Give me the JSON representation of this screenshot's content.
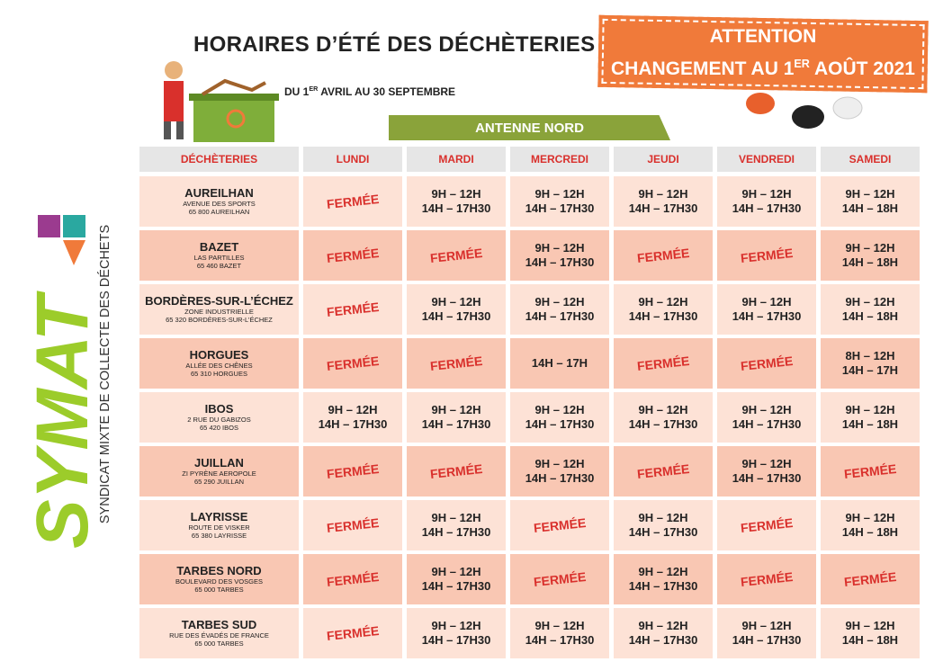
{
  "header": {
    "title": "HORAIRES D’ÉTÉ DES DÉCHÈTERIES",
    "period": [
      "DU 1",
      "ER",
      " AVRIL AU 30 SEPTEMBRE"
    ]
  },
  "notice": {
    "line1": "ATTENTION",
    "line2": [
      "CHANGEMENT AU 1",
      "ER",
      " AOÛT 2021"
    ]
  },
  "section": "ANTENNE NORD",
  "brand": {
    "name": "SYMAT",
    "tagline": "SYNDICAT MIXTE DE COLLECTE DES DÉCHETS"
  },
  "table": {
    "columns": [
      "DÉCHÈTERIES",
      "LUNDI",
      "MARDI",
      "MERCREDI",
      "JEUDI",
      "VENDREDI",
      "SAMEDI"
    ],
    "rows": [
      {
        "name": "AUREILHAN",
        "address": [
          "AVENUE DES SPORTS",
          "65 800 AUREILHAN"
        ],
        "hours": [
          [
            "FERMÉE"
          ],
          [
            "9H – 12H",
            "14H – 17H30"
          ],
          [
            "9H – 12H",
            "14H – 17H30"
          ],
          [
            "9H – 12H",
            "14H – 17H30"
          ],
          [
            "9H – 12H",
            "14H – 17H30"
          ],
          [
            "9H – 12H",
            "14H – 18H"
          ]
        ]
      },
      {
        "name": "BAZET",
        "address": [
          "LAS PARTILLES",
          "65 460 BAZET"
        ],
        "hours": [
          [
            "FERMÉE"
          ],
          [
            "FERMÉE"
          ],
          [
            "9H – 12H",
            "14H – 17H30"
          ],
          [
            "FERMÉE"
          ],
          [
            "FERMÉE"
          ],
          [
            "9H – 12H",
            "14H – 18H"
          ]
        ]
      },
      {
        "name": "BORDÈRES-SUR-L’ÉCHEZ",
        "address": [
          "ZONE INDUSTRIELLE",
          "65 320 BORDÈRES-SUR-L’ÉCHEZ"
        ],
        "hours": [
          [
            "FERMÉE"
          ],
          [
            "9H – 12H",
            "14H – 17H30"
          ],
          [
            "9H – 12H",
            "14H – 17H30"
          ],
          [
            "9H – 12H",
            "14H – 17H30"
          ],
          [
            "9H – 12H",
            "14H – 17H30"
          ],
          [
            "9H – 12H",
            "14H – 18H"
          ]
        ]
      },
      {
        "name": "HORGUES",
        "address": [
          "ALLÉE DES CHÊNES",
          "65 310 HORGUES"
        ],
        "hours": [
          [
            "FERMÉE"
          ],
          [
            "FERMÉE"
          ],
          [
            "14H – 17H"
          ],
          [
            "FERMÉE"
          ],
          [
            "FERMÉE"
          ],
          [
            "8H – 12H",
            "14H – 17H"
          ]
        ]
      },
      {
        "name": "IBOS",
        "address": [
          "2 RUE DU GABIZOS",
          "65 420 IBOS"
        ],
        "hours": [
          [
            "9H – 12H",
            "14H – 17H30"
          ],
          [
            "9H – 12H",
            "14H – 17H30"
          ],
          [
            "9H – 12H",
            "14H – 17H30"
          ],
          [
            "9H – 12H",
            "14H – 17H30"
          ],
          [
            "9H – 12H",
            "14H – 17H30"
          ],
          [
            "9H – 12H",
            "14H – 18H"
          ]
        ]
      },
      {
        "name": "JUILLAN",
        "address": [
          "ZI PYRÈNE AEROPOLE",
          "65 290 JUILLAN"
        ],
        "hours": [
          [
            "FERMÉE"
          ],
          [
            "FERMÉE"
          ],
          [
            "9H – 12H",
            "14H – 17H30"
          ],
          [
            "FERMÉE"
          ],
          [
            "9H – 12H",
            "14H – 17H30"
          ],
          [
            "FERMÉE"
          ]
        ]
      },
      {
        "name": "LAYRISSE",
        "address": [
          "ROUTE DE VISKER",
          "65 380 LAYRISSE"
        ],
        "hours": [
          [
            "FERMÉE"
          ],
          [
            "9H – 12H",
            "14H – 17H30"
          ],
          [
            "FERMÉE"
          ],
          [
            "9H – 12H",
            "14H – 17H30"
          ],
          [
            "FERMÉE"
          ],
          [
            "9H – 12H",
            "14H – 18H"
          ]
        ]
      },
      {
        "name": "TARBES NORD",
        "address": [
          "BOULEVARD DES VOSGES",
          "65 000 TARBES"
        ],
        "hours": [
          [
            "FERMÉE"
          ],
          [
            "9H – 12H",
            "14H – 17H30"
          ],
          [
            "FERMÉE"
          ],
          [
            "9H – 12H",
            "14H – 17H30"
          ],
          [
            "FERMÉE"
          ],
          [
            "FERMÉE"
          ]
        ]
      },
      {
        "name": "TARBES SUD",
        "address": [
          "RUE DES ÉVADÉS DE FRANCE",
          "65 000 TARBES"
        ],
        "hours": [
          [
            "FERMÉE"
          ],
          [
            "9H – 12H",
            "14H – 17H30"
          ],
          [
            "9H – 12H",
            "14H – 17H30"
          ],
          [
            "9H – 12H",
            "14H – 17H30"
          ],
          [
            "9H – 12H",
            "14H – 17H30"
          ],
          [
            "9H – 12H",
            "14H – 18H"
          ]
        ]
      }
    ],
    "closed": "FERMÉE"
  }
}
